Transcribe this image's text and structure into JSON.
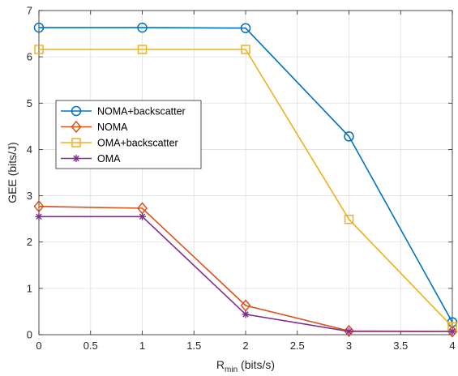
{
  "chart_data": {
    "type": "line",
    "title": "",
    "xlabel": {
      "main": "R",
      "sub": "min",
      "unit": " (bits/s)"
    },
    "ylabel": "GEE (bits/J)",
    "xlim": [
      0,
      4
    ],
    "ylim": [
      0,
      7
    ],
    "x_ticks": [
      "0",
      "0.5",
      "1",
      "1.5",
      "2",
      "2.5",
      "3",
      "3.5",
      "4"
    ],
    "y_ticks": [
      "0",
      "1",
      "2",
      "3",
      "4",
      "5",
      "6",
      "7"
    ],
    "grid": true,
    "legend_placement": "center-left",
    "x": [
      0,
      1,
      2,
      3,
      4
    ],
    "series": [
      {
        "name": "NOMA+backscatter",
        "color": "#0072BD",
        "marker": "circle",
        "values": [
          6.63,
          6.63,
          6.62,
          4.28,
          0.27
        ]
      },
      {
        "name": "NOMA",
        "color": "#D95319",
        "marker": "diamond",
        "values": [
          2.77,
          2.73,
          0.63,
          0.08,
          0.07
        ]
      },
      {
        "name": "OMA+backscatter",
        "color": "#EDB120",
        "marker": "square",
        "values": [
          6.16,
          6.16,
          6.16,
          2.49,
          0.17
        ]
      },
      {
        "name": "OMA",
        "color": "#7E2F8E",
        "marker": "asterisk",
        "values": [
          2.55,
          2.55,
          0.44,
          0.07,
          0.07
        ]
      }
    ]
  }
}
